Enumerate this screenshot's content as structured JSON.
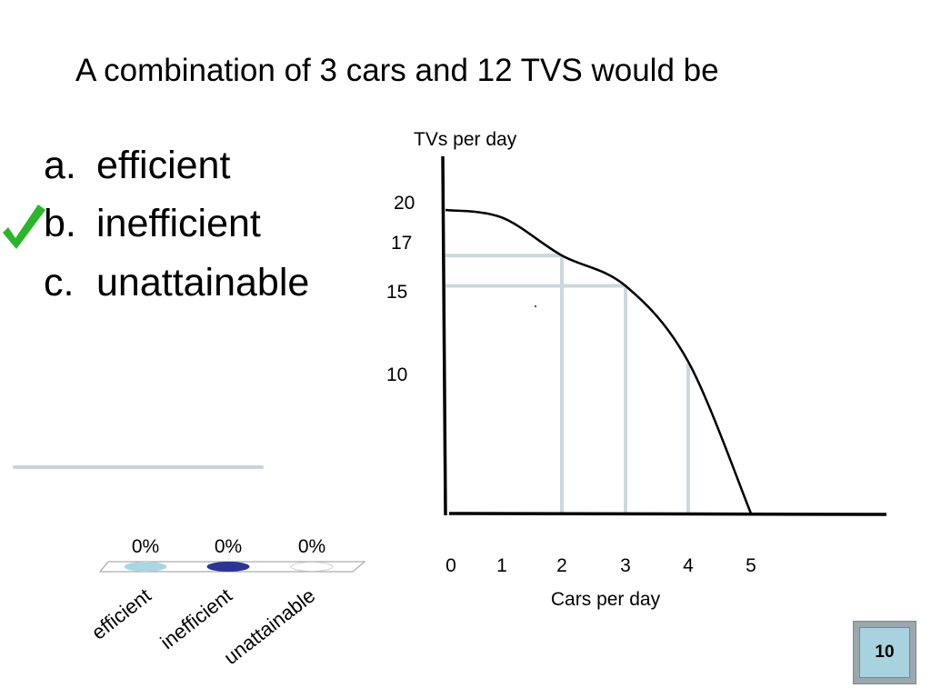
{
  "slide": {
    "title": "A combination of 3 cars and 12 TVS would be",
    "choices": [
      {
        "letter": "a.",
        "text": "efficient"
      },
      {
        "letter": "b.",
        "text": "inefficient"
      },
      {
        "letter": "c.",
        "text": "unattainable"
      }
    ],
    "correct_choice_icon": "checkmark-icon",
    "accent_color": "#2bb52b"
  },
  "poll": {
    "percentages": [
      "0%",
      "0%",
      "0%"
    ],
    "labels": [
      "efficient",
      "inefficient",
      "unattainable"
    ],
    "swatch_colors": [
      "#a8d6e3",
      "#2c3594",
      "#ffffff"
    ]
  },
  "timer": {
    "value": "10"
  },
  "chart_data": {
    "type": "line",
    "ylabel": "TVs per day",
    "xlabel": "Cars per day",
    "x_ticks": [
      "0",
      "1",
      "2",
      "3",
      "4",
      "5"
    ],
    "y_ticks": [
      "10",
      "15",
      "17",
      "20"
    ],
    "series": [
      {
        "x": [
          0,
          1,
          2,
          3,
          4,
          5
        ],
        "y": [
          20,
          19.5,
          17,
          15,
          10,
          0
        ]
      }
    ],
    "guide_color": "#cbd9de"
  }
}
